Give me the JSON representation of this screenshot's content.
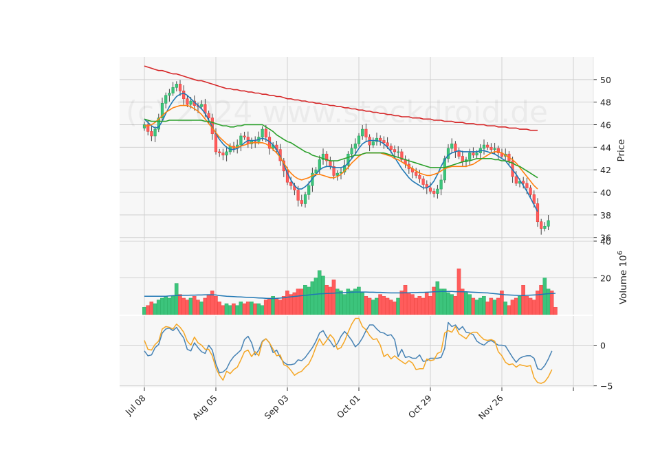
{
  "chart_data": {
    "type": "candlestick",
    "watermark": "(c) 2024 www.stockdroid.de",
    "x_ticks": [
      "Jul 08",
      "Aug 05",
      "Sep 03",
      "Oct 01",
      "Oct 29",
      "Nov 26"
    ],
    "x_tick_index": [
      0,
      20,
      40,
      60,
      80,
      100,
      120
    ],
    "price_panel": {
      "ylabel": "Price",
      "ylim": [
        35.8,
        52.0
      ],
      "yticks": [
        36,
        38,
        40,
        42,
        44,
        46,
        48,
        50
      ],
      "close": [
        46.0,
        45.4,
        45.0,
        45.6,
        46.6,
        47.9,
        48.6,
        48.8,
        49.3,
        49.6,
        49.0,
        48.3,
        47.8,
        48.1,
        47.7,
        47.6,
        47.8,
        47.0,
        46.6,
        45.2,
        43.6,
        43.5,
        43.3,
        43.6,
        44.1,
        43.9,
        44.2,
        45.0,
        44.9,
        44.3,
        44.6,
        44.5,
        44.9,
        45.6,
        44.9,
        43.9,
        44.2,
        43.8,
        42.8,
        41.9,
        40.9,
        40.6,
        40.2,
        39.3,
        39.0,
        39.8,
        40.6,
        41.7,
        42.0,
        42.9,
        43.4,
        42.8,
        42.3,
        41.5,
        41.7,
        41.8,
        42.4,
        43.4,
        43.9,
        44.3,
        45.0,
        45.6,
        44.9,
        44.2,
        44.5,
        44.8,
        44.6,
        44.4,
        44.1,
        43.8,
        43.6,
        43.6,
        42.9,
        42.5,
        42.1,
        41.8,
        41.5,
        41.2,
        40.7,
        40.4,
        40.1,
        39.9,
        40.3,
        41.1,
        43.0,
        43.9,
        44.3,
        43.6,
        43.2,
        42.7,
        42.9,
        43.5,
        43.3,
        43.5,
        43.9,
        44.2,
        44.0,
        43.8,
        43.9,
        43.5,
        43.2,
        43.4,
        42.8,
        41.4,
        40.8,
        41.0,
        40.8,
        40.4,
        39.8,
        39.0,
        37.4,
        36.8,
        37.0,
        37.5
      ],
      "overlays": [
        {
          "color": "#1f77b4",
          "values": [
            46.5,
            46.2,
            45.9,
            45.7,
            45.8,
            46.3,
            47.0,
            47.6,
            48.1,
            48.5,
            48.7,
            48.8,
            48.6,
            48.3,
            48.0,
            47.7,
            47.4,
            47.0,
            46.4,
            45.8,
            45.2,
            44.7,
            44.3,
            44.0,
            43.8,
            43.8,
            43.9,
            44.1,
            44.4,
            44.6,
            44.6,
            44.6,
            44.7,
            44.8,
            44.7,
            44.5,
            44.2,
            43.8,
            43.2,
            42.5,
            41.7,
            41.1,
            40.6,
            40.3,
            40.3,
            40.5,
            40.8,
            41.2,
            41.6,
            42.0,
            42.2,
            42.3,
            42.3,
            42.2,
            42.2,
            42.2,
            42.3,
            42.6,
            43.0,
            43.4,
            43.9,
            44.3,
            44.5,
            44.6,
            44.6,
            44.6,
            44.5,
            44.3,
            44.0,
            43.6,
            43.1,
            42.6,
            42.1,
            41.7,
            41.3,
            41.0,
            40.8,
            40.6,
            40.4,
            40.4,
            40.6,
            41.0,
            41.6,
            42.3,
            42.9,
            43.3,
            43.5,
            43.6,
            43.7,
            43.6,
            43.6,
            43.6,
            43.6,
            43.6,
            43.7,
            43.7,
            43.6,
            43.5,
            43.4,
            43.2,
            43.0,
            42.8,
            42.4,
            42.0,
            41.6,
            41.1,
            40.6,
            40.1,
            39.5,
            38.9,
            38.3
          ]
        },
        {
          "color": "#ff7f0e",
          "values": [
            45.9,
            45.9,
            46.0,
            46.2,
            46.5,
            46.8,
            47.1,
            47.3,
            47.5,
            47.6,
            47.7,
            47.7,
            47.7,
            47.6,
            47.4,
            47.2,
            46.9,
            46.5,
            46.1,
            45.7,
            45.3,
            44.9,
            44.6,
            44.3,
            44.1,
            44.0,
            44.0,
            44.1,
            44.2,
            44.3,
            44.4,
            44.4,
            44.4,
            44.4,
            44.3,
            44.1,
            43.8,
            43.5,
            43.1,
            42.6,
            42.1,
            41.7,
            41.4,
            41.2,
            41.1,
            41.2,
            41.3,
            41.5,
            41.6,
            41.6,
            41.5,
            41.4,
            41.3,
            41.3,
            41.4,
            41.6,
            41.9,
            42.2,
            42.6,
            42.9,
            43.2,
            43.4,
            43.5,
            43.5,
            43.5,
            43.5,
            43.5,
            43.4,
            43.3,
            43.2,
            43.0,
            42.9,
            42.7,
            42.5,
            42.3,
            42.1,
            41.9,
            41.7,
            41.6,
            41.5,
            41.5,
            41.6,
            41.7,
            41.9,
            42.1,
            42.2,
            42.3,
            42.3,
            42.3,
            42.3,
            42.3,
            42.4,
            42.5,
            42.7,
            42.9,
            43.1,
            43.3,
            43.5,
            43.6,
            43.6,
            43.5,
            43.3,
            43.1,
            42.9,
            42.6,
            42.2,
            41.8,
            41.4,
            41.0,
            40.6,
            40.3
          ]
        },
        {
          "color": "#2ca02c",
          "values": [
            46.5,
            46.4,
            46.3,
            46.3,
            46.3,
            46.3,
            46.3,
            46.4,
            46.4,
            46.4,
            46.4,
            46.4,
            46.4,
            46.4,
            46.4,
            46.4,
            46.4,
            46.3,
            46.3,
            46.2,
            46.1,
            46.0,
            45.9,
            45.9,
            45.8,
            45.8,
            45.9,
            45.9,
            46.0,
            46.0,
            46.0,
            46.0,
            46.0,
            46.0,
            45.8,
            45.6,
            45.4,
            45.1,
            44.9,
            44.7,
            44.5,
            44.4,
            44.2,
            44.0,
            43.8,
            43.6,
            43.5,
            43.3,
            43.2,
            43.1,
            43.0,
            42.9,
            42.8,
            42.8,
            42.8,
            42.9,
            43.0,
            43.1,
            43.2,
            43.3,
            43.3,
            43.4,
            43.5,
            43.5,
            43.5,
            43.5,
            43.5,
            43.5,
            43.4,
            43.3,
            43.2,
            43.1,
            43.0,
            42.9,
            42.8,
            42.7,
            42.6,
            42.5,
            42.4,
            42.3,
            42.2,
            42.2,
            42.2,
            42.2,
            42.2,
            42.3,
            42.4,
            42.5,
            42.6,
            42.7,
            42.8,
            42.8,
            42.9,
            43.0,
            43.0,
            43.0,
            43.0,
            43.0,
            42.9,
            42.9,
            42.8,
            42.8,
            42.7,
            42.6,
            42.4,
            42.3,
            42.1,
            41.9,
            41.7,
            41.5,
            41.3
          ]
        },
        {
          "color": "#d62728",
          "values": [
            51.2,
            51.1,
            51.0,
            50.9,
            50.8,
            50.8,
            50.7,
            50.6,
            50.5,
            50.5,
            50.4,
            50.3,
            50.2,
            50.1,
            50.0,
            49.9,
            49.9,
            49.8,
            49.7,
            49.6,
            49.5,
            49.4,
            49.3,
            49.2,
            49.2,
            49.1,
            49.1,
            49.0,
            49.0,
            48.9,
            48.9,
            48.8,
            48.8,
            48.7,
            48.7,
            48.6,
            48.6,
            48.5,
            48.5,
            48.4,
            48.3,
            48.3,
            48.2,
            48.2,
            48.1,
            48.1,
            48.0,
            48.0,
            47.9,
            47.9,
            47.8,
            47.8,
            47.7,
            47.7,
            47.6,
            47.6,
            47.5,
            47.5,
            47.4,
            47.4,
            47.3,
            47.3,
            47.2,
            47.2,
            47.1,
            47.1,
            47.0,
            47.0,
            46.9,
            46.9,
            46.8,
            46.8,
            46.7,
            46.7,
            46.7,
            46.6,
            46.6,
            46.6,
            46.5,
            46.5,
            46.5,
            46.4,
            46.4,
            46.4,
            46.3,
            46.3,
            46.3,
            46.2,
            46.2,
            46.2,
            46.1,
            46.1,
            46.1,
            46.0,
            46.0,
            46.0,
            45.9,
            45.9,
            45.9,
            45.8,
            45.8,
            45.8,
            45.7,
            45.7,
            45.7,
            45.6,
            45.6,
            45.6,
            45.5,
            45.5,
            45.5
          ]
        }
      ]
    },
    "volume_panel": {
      "ylabel": "Volume",
      "ylabel_exp": "6",
      "ylim": [
        0,
        40
      ],
      "yticks": [
        20,
        40
      ],
      "values": [
        4,
        5,
        7,
        6,
        8,
        9,
        10,
        9,
        10,
        17,
        11,
        9,
        8,
        9,
        10,
        8,
        7,
        9,
        11,
        13,
        10,
        7,
        5,
        6,
        5,
        6,
        5,
        7,
        6,
        7,
        7,
        6,
        6,
        5,
        8,
        9,
        10,
        9,
        8,
        10,
        13,
        11,
        12,
        14,
        14,
        16,
        15,
        18,
        20,
        24,
        21,
        16,
        15,
        19,
        14,
        13,
        11,
        14,
        13,
        14,
        15,
        12,
        10,
        9,
        8,
        9,
        11,
        10,
        9,
        8,
        7,
        9,
        13,
        16,
        12,
        11,
        9,
        10,
        9,
        12,
        10,
        15,
        18,
        14,
        14,
        12,
        11,
        10,
        25,
        14,
        12,
        11,
        9,
        8,
        9,
        10,
        7,
        9,
        8,
        9,
        13,
        7,
        5,
        8,
        9,
        10,
        16,
        10,
        9,
        8,
        13,
        16,
        20,
        14,
        13,
        4
      ],
      "ma": [
        10,
        10,
        10,
        10,
        10,
        10,
        10,
        10.2,
        10.3,
        10.4,
        10.5,
        10.5,
        10.5,
        10.6,
        10.6,
        10.7,
        10.7,
        10.8,
        10.8,
        10.8,
        10.7,
        10.4,
        10.2,
        10,
        9.9,
        9.8,
        9.7,
        9.6,
        9.5,
        9.4,
        9.3,
        9.2,
        9.1,
        9,
        8.9,
        8.8,
        8.8,
        8.9,
        9,
        9.2,
        9.5,
        9.7,
        9.9,
        10.1,
        10.3,
        10.5,
        10.7,
        10.9,
        11.1,
        11.3,
        11.4,
        11.5,
        11.6,
        11.7,
        11.8,
        11.9,
        12,
        12.1,
        12.2,
        12.3,
        12.3,
        12.3,
        12.3,
        12.2,
        12.2,
        12.1,
        12.1,
        12,
        11.9,
        11.8,
        11.8,
        11.8,
        11.8,
        11.9,
        11.9,
        12,
        12,
        12.1,
        12.1,
        12.2,
        12.3,
        12.4,
        12.5,
        12.6,
        12.6,
        12.6,
        12.6,
        12.5,
        12.5,
        12.4,
        12.4,
        12.3,
        12.2,
        12.1,
        12,
        11.9,
        11.8,
        11.6,
        11.4,
        11.2,
        11,
        10.8,
        10.7,
        10.6,
        10.5,
        10.4,
        10.4,
        10.5,
        10.6,
        10.7,
        10.8,
        11,
        11.2,
        11.4,
        11.5,
        11.6
      ]
    },
    "indicator_panel": {
      "ylim": [
        -5.2,
        3.6
      ],
      "yticks": [
        -5,
        0
      ],
      "ytick_labels": [
        "−5",
        "0"
      ],
      "series": [
        {
          "color": "#4682b4",
          "values": [
            -0.7,
            -1.3,
            -1.2,
            -0.3,
            0.1,
            1.5,
            2.0,
            2.1,
            1.8,
            2.2,
            1.5,
            0.9,
            -0.5,
            -0.7,
            0.3,
            -0.3,
            -0.8,
            -1.0,
            0.0,
            -0.6,
            -2.3,
            -3.4,
            -3.3,
            -2.9,
            -2.0,
            -1.4,
            -1.0,
            -0.6,
            0.7,
            1.1,
            0.3,
            -1.2,
            -0.6,
            0.5,
            0.8,
            0.3,
            -0.9,
            -0.6,
            -1.5,
            -2.1,
            -2.4,
            -2.4,
            -2.3,
            -1.8,
            -1.9,
            -1.5,
            -0.9,
            -0.3,
            0.5,
            1.5,
            1.8,
            1.0,
            0.5,
            -0.2,
            0.2,
            1.1,
            1.7,
            1.2,
            0.6,
            -0.2,
            0.2,
            0.9,
            1.8,
            2.5,
            2.5,
            2.0,
            1.6,
            1.5,
            1.2,
            1.3,
            0.7,
            -1.4,
            -0.5,
            -1.5,
            -1.4,
            -1.6,
            -1.6,
            -1.2,
            -2.0,
            -1.9,
            -1.6,
            -1.6,
            -1.6,
            -1.5,
            -0.4,
            2.8,
            2.3,
            2.5,
            1.9,
            2.3,
            1.6,
            1.5,
            1.3,
            0.5,
            0.2,
            0.0,
            0.4,
            0.6,
            0.3,
            0.0,
            0.0,
            -0.1,
            -0.8,
            -1.5,
            -2.1,
            -1.6,
            -1.4,
            -1.3,
            -1.3,
            -1.6,
            -2.9,
            -3.0,
            -2.5,
            -1.7,
            -0.7
          ]
        },
        {
          "color": "#f5a623",
          "values": [
            0.6,
            -0.5,
            -0.6,
            0.1,
            0.5,
            2.0,
            2.3,
            2.2,
            2.0,
            2.6,
            2.2,
            1.6,
            0.5,
            0.0,
            1.0,
            0.3,
            0.0,
            -0.5,
            -0.5,
            -1.3,
            -2.8,
            -3.7,
            -4.3,
            -3.2,
            -3.5,
            -3.0,
            -2.7,
            -1.8,
            -0.8,
            -0.6,
            -1.4,
            -0.8,
            -1.3,
            0.4,
            0.8,
            0.3,
            -0.5,
            -1.3,
            -1.2,
            -2.4,
            -2.6,
            -3.1,
            -3.7,
            -3.4,
            -3.2,
            -2.7,
            -2.3,
            -1.4,
            -0.2,
            0.8,
            0.0,
            0.6,
            1.3,
            0.8,
            -0.5,
            -0.3,
            0.5,
            1.6,
            2.6,
            3.3,
            3.3,
            2.3,
            1.9,
            1.2,
            0.7,
            0.8,
            0.0,
            -1.4,
            -1.1,
            -1.7,
            -1.3,
            -1.7,
            -2.0,
            -2.3,
            -1.9,
            -2.2,
            -3.0,
            -2.9,
            -2.9,
            -1.7,
            -1.9,
            -1.8,
            -1.0,
            -0.8,
            1.5,
            1.8,
            1.6,
            2.3,
            1.4,
            1.1,
            0.8,
            1.4,
            1.6,
            1.6,
            1.1,
            0.7,
            0.6,
            0.7,
            0.5,
            -0.8,
            -1.3,
            -2.1,
            -2.4,
            -2.3,
            -2.7,
            -2.4,
            -2.5,
            -2.6,
            -2.5,
            -4.0,
            -4.6,
            -4.7,
            -4.5,
            -3.9,
            -3.0
          ]
        }
      ]
    },
    "colors": {
      "up": "#26a65b",
      "up_fill": "#3cc47c",
      "down": "#e8403a",
      "down_fill": "#ff5c5c",
      "panel_bg": "#f7f7f7",
      "grid": "#d0d0d0"
    }
  }
}
